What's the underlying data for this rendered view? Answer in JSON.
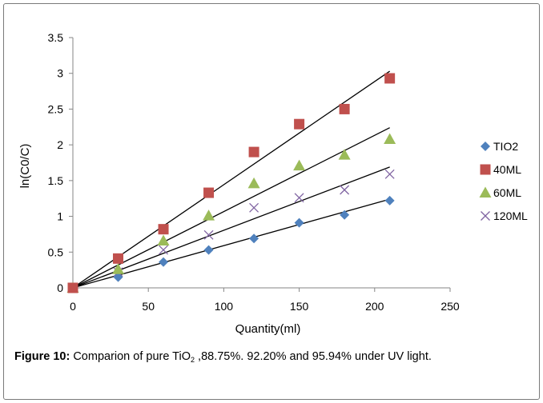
{
  "chart_data": {
    "type": "scatter",
    "xlabel": "Quantity(ml)",
    "ylabel": "ln(C0/C)",
    "xlim": [
      0,
      250
    ],
    "ylim": [
      0,
      3.5
    ],
    "x_ticks": [
      "0",
      "50",
      "100",
      "150",
      "200",
      "250"
    ],
    "y_ticks": [
      "0",
      "0.5",
      "1",
      "1.5",
      "2",
      "2.5",
      "3",
      "3.5"
    ],
    "grid": false,
    "legend": "right",
    "x": [
      0,
      30,
      60,
      90,
      120,
      150,
      180,
      210
    ],
    "series": [
      {
        "name": "TIO2",
        "marker": "diamond",
        "color": "#4f81bd",
        "values": [
          0,
          0.15,
          0.36,
          0.53,
          0.69,
          0.91,
          1.02,
          1.22
        ],
        "trendline_end": 1.24
      },
      {
        "name": "40ML",
        "marker": "square",
        "color": "#c0504d",
        "values": [
          0,
          0.41,
          0.82,
          1.33,
          1.9,
          2.29,
          2.5,
          2.93
        ],
        "trendline_end": 3.03
      },
      {
        "name": "60ML",
        "marker": "triangle",
        "color": "#9bbb59",
        "values": [
          0,
          0.26,
          0.66,
          1.01,
          1.46,
          1.71,
          1.86,
          2.08
        ],
        "trendline_end": 2.24
      },
      {
        "name": "120ML",
        "marker": "x",
        "color": "#8064a2",
        "values": [
          0,
          0.22,
          0.53,
          0.74,
          1.12,
          1.26,
          1.37,
          1.59
        ],
        "trendline_end": 1.69
      }
    ]
  },
  "caption": {
    "label": "Figure 10:",
    "text_before": " Comparion of pure TiO",
    "subscript": "2",
    "text_after": " ,88.75%. 92.20% and 95.94% under UV light."
  }
}
